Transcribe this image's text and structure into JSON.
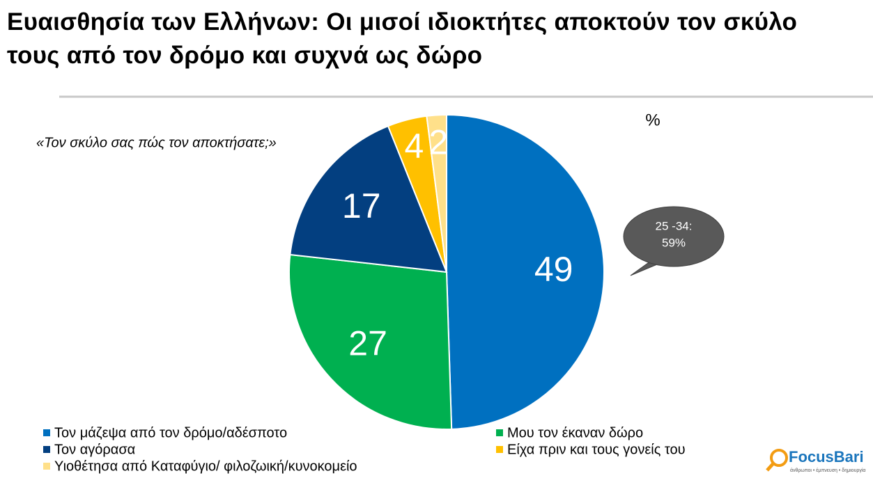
{
  "chart_data": {
    "type": "pie",
    "title": "Ευαισθησία των Ελλήνων: Οι μισοί ιδιοκτήτες αποκτούν τον σκύλο τους από τον δρόμο και συχνά ως δώρο",
    "subtitle": "«Τον σκύλο σας πώς τον αποκτήσατε;»",
    "unit": "%",
    "categories": [
      "Τον μάζεψα από τον δρόμο/αδέσποτο",
      "Μου τον έκαναν δώρο",
      "Τον αγόρασα",
      "Είχα πριν και τους γονείς του",
      "Υιοθέτησα από Καταφύγιο/ φιλοζωική/κυνοκομείο"
    ],
    "values": [
      49,
      27,
      17,
      4,
      2
    ],
    "colors": [
      "#0070c0",
      "#00b050",
      "#033f80",
      "#ffc000",
      "#ffe08a"
    ],
    "annotations": [
      "25 -34:",
      "59%"
    ]
  },
  "logo": {
    "name": "FocusBari",
    "tagline": "άνθρωποι • έμπνευση • δημιουργία"
  }
}
